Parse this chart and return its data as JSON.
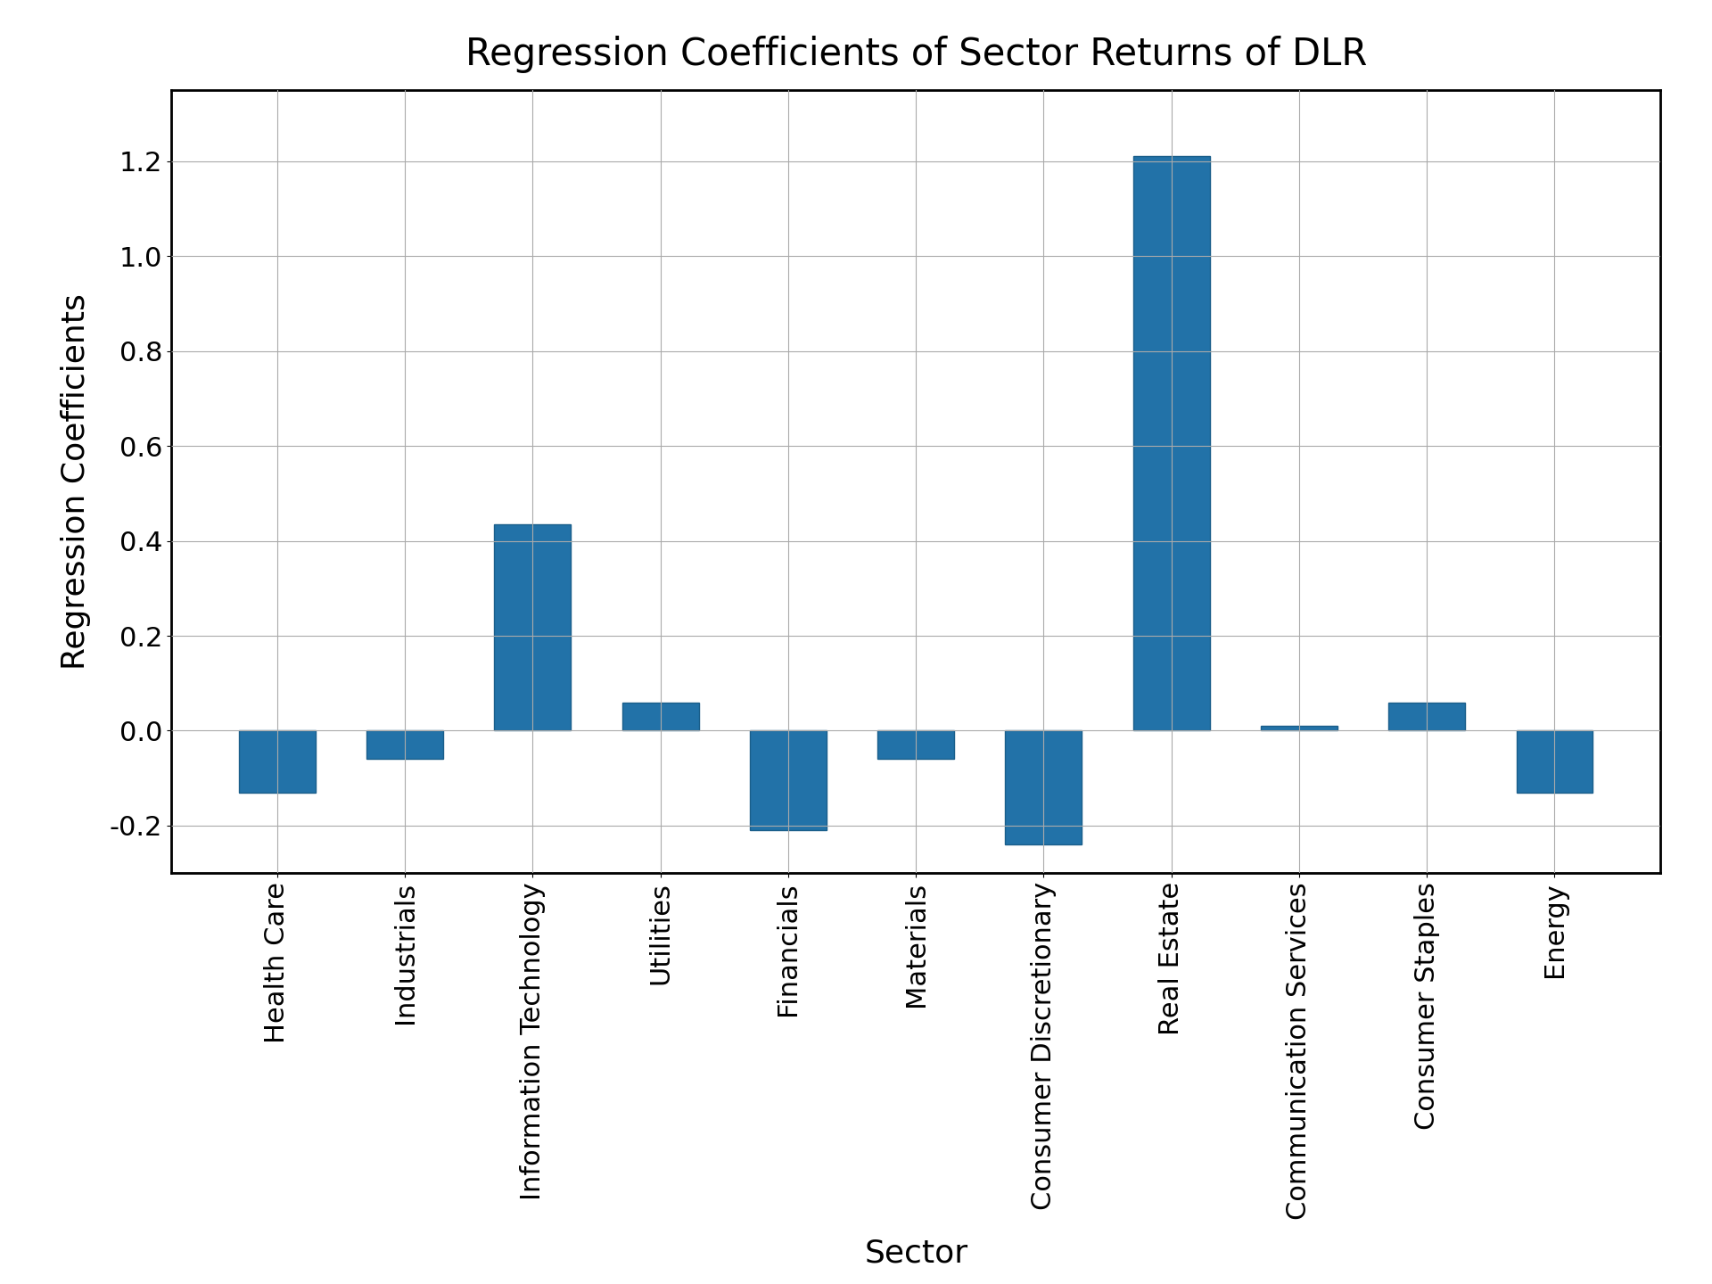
{
  "title": "Regression Coefficients of Sector Returns of DLR",
  "xlabel": "Sector",
  "ylabel": "Regression Coefficients",
  "categories": [
    "Health Care",
    "Industrials",
    "Information Technology",
    "Utilities",
    "Financials",
    "Materials",
    "Consumer Discretionary",
    "Real Estate",
    "Communication Services",
    "Consumer Staples",
    "Energy"
  ],
  "values": [
    -0.13,
    -0.06,
    0.435,
    0.06,
    -0.21,
    -0.06,
    -0.24,
    1.21,
    0.01,
    0.06,
    -0.13
  ],
  "bar_color": "#2272a8",
  "bar_edgecolor": "#1a5e8a",
  "ylim": [
    -0.3,
    1.35
  ],
  "yticks": [
    -0.2,
    0.0,
    0.2,
    0.4,
    0.6,
    0.8,
    1.0,
    1.2
  ],
  "title_fontsize": 30,
  "axis_label_fontsize": 26,
  "tick_fontsize": 22,
  "grid_color": "#aaaaaa",
  "background_color": "#ffffff"
}
